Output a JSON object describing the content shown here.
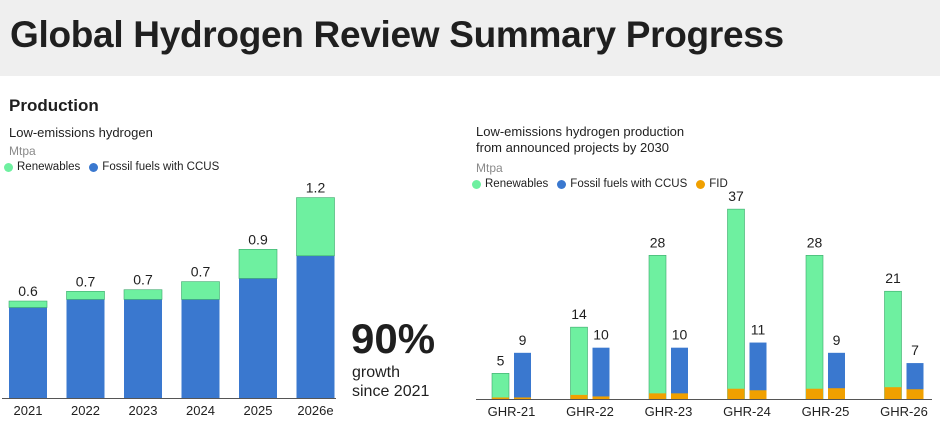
{
  "header": {
    "title": "Global Hydrogen Review Summary Progress"
  },
  "section": {
    "title": "Production"
  },
  "colors": {
    "renewables": "#6ef0a0",
    "fossil_ccus": "#3a78cf",
    "fid": "#f0a000",
    "axis": "#555555"
  },
  "callout": {
    "value": "90%",
    "line1": "growth",
    "line2": "since 2021"
  },
  "chart_data": [
    {
      "type": "bar",
      "stacked": true,
      "title": "Low-emissions hydrogen",
      "unit": "Mtpa",
      "categories": [
        "2021",
        "2022",
        "2023",
        "2024",
        "2025",
        "2026e"
      ],
      "series": [
        {
          "name": "Fossil fuels with CCUS",
          "values": [
            0.56,
            0.61,
            0.61,
            0.61,
            0.74,
            0.88
          ]
        },
        {
          "name": "Renewables",
          "values": [
            0.04,
            0.05,
            0.06,
            0.11,
            0.18,
            0.36
          ]
        }
      ],
      "data_labels": [
        "0.6",
        "0.7",
        "0.7",
        "0.7",
        "0.9",
        "1.2"
      ],
      "ylim": [
        0,
        1.25
      ],
      "legend": [
        "Renewables",
        "Fossil fuels with CCUS"
      ],
      "legend_position": "top-left",
      "grid": false
    },
    {
      "type": "bar",
      "grouped": true,
      "title_line1": "Low-emissions hydrogen production",
      "title_line2": "from announced projects by 2030",
      "unit": "Mtpa",
      "categories": [
        "GHR-21",
        "GHR-22",
        "GHR-23",
        "GHR-24",
        "GHR-25",
        "GHR-26"
      ],
      "series": [
        {
          "name": "Renewables",
          "values": [
            5,
            14,
            28,
            37,
            28,
            21
          ],
          "fid": [
            0.3,
            0.8,
            1.1,
            2.0,
            2.0,
            2.3
          ]
        },
        {
          "name": "Fossil fuels with CCUS",
          "values": [
            9,
            10,
            10,
            11,
            9,
            7
          ],
          "fid": [
            0.3,
            0.5,
            1.1,
            1.7,
            2.1,
            1.9
          ]
        }
      ],
      "data_labels_renewables": [
        "5",
        "14",
        "28",
        "37",
        "28",
        "21"
      ],
      "data_labels_fossil": [
        "9",
        "10",
        "10",
        "11",
        "9",
        "7"
      ],
      "ylim": [
        0,
        38
      ],
      "legend": [
        "Renewables",
        "Fossil fuels with CCUS",
        "FID"
      ],
      "legend_position": "top-left",
      "grid": false
    }
  ]
}
